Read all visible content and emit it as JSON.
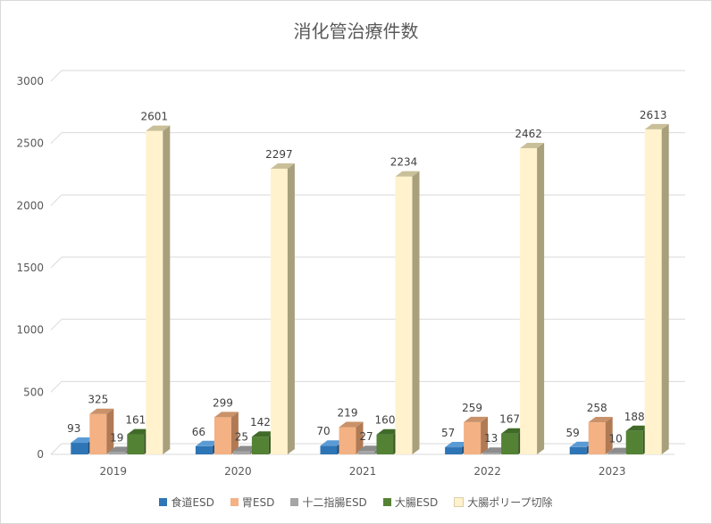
{
  "chart_data": {
    "type": "bar",
    "title": "消化管治療件数",
    "categories": [
      "2019",
      "2020",
      "2021",
      "2022",
      "2023"
    ],
    "ylim": [
      0,
      3000
    ],
    "yticks": [
      "0",
      "500",
      "1000",
      "1500",
      "2000",
      "2500",
      "3000"
    ],
    "grid": true,
    "legend_position": "bottom",
    "style": "3d-clustered-column",
    "series": [
      {
        "name": "食道ESD",
        "values": [
          93,
          66,
          70,
          57,
          59
        ],
        "color": "#2e75b6",
        "side": "#1f4e79",
        "top": "#5b9bd5"
      },
      {
        "name": "胃ESD",
        "values": [
          325,
          299,
          219,
          259,
          258
        ],
        "color": "#f4b183",
        "side": "#b07a55",
        "top": "#c9926a"
      },
      {
        "name": "十二指腸ESD",
        "values": [
          19,
          25,
          27,
          13,
          10
        ],
        "color": "#a5a5a5",
        "side": "#7f7f7f",
        "top": "#8c8c8c"
      },
      {
        "name": "大腸ESD",
        "values": [
          161,
          142,
          160,
          167,
          188
        ],
        "color": "#548235",
        "side": "#385723",
        "top": "#3f6a27"
      },
      {
        "name": "大腸ポリープ切除",
        "values": [
          2601,
          2297,
          2234,
          2462,
          2613
        ],
        "color": "#fff2cc",
        "side": "#a89f7c",
        "top": "#c9c09a"
      }
    ]
  }
}
